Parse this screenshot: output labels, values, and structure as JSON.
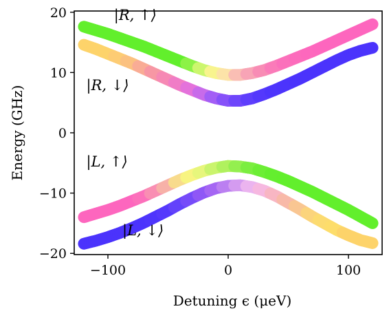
{
  "chart_data": {
    "type": "line",
    "title": "",
    "xlabel": "Detuning ϵ (μeV)",
    "ylabel": "Energy (GHz)",
    "xlim": [
      -128,
      128
    ],
    "ylim": [
      -20.2,
      20.2
    ],
    "xticks": [
      -100,
      0,
      100
    ],
    "xtick_labels": [
      "−100",
      "0",
      "100"
    ],
    "yticks": [
      -20,
      -10,
      0,
      10,
      20
    ],
    "ytick_labels": [
      "−20",
      "−10",
      "0",
      "10",
      "20"
    ],
    "grid": false,
    "x": [
      -120,
      -110,
      -100,
      -90,
      -80,
      -70,
      -60,
      -50,
      -40,
      -30,
      -20,
      -10,
      0,
      10,
      20,
      30,
      40,
      50,
      60,
      70,
      80,
      90,
      100,
      110,
      120
    ],
    "series": [
      {
        "label": "|R, ↑⟩",
        "values": [
          17.6,
          17.0,
          16.4,
          15.7,
          15.0,
          14.3,
          13.5,
          12.7,
          11.9,
          11.1,
          10.4,
          9.9,
          9.6,
          9.6,
          9.9,
          10.4,
          11.1,
          11.9,
          12.7,
          13.5,
          14.4,
          15.3,
          16.2,
          17.1,
          18.0
        ],
        "colors": [
          "#62ef2c",
          "#62ef2c",
          "#62ef2c",
          "#62ef2c",
          "#62ef2c",
          "#62ef2c",
          "#62ef2c",
          "#62ef2c",
          "#62ef2c",
          "#8cf247",
          "#ccf66e",
          "#f8f48e",
          "#fce3a8",
          "#fabeb4",
          "#f8a4b6",
          "#f88cb5",
          "#fa7bb9",
          "#fb70bb",
          "#fc6bbc",
          "#fd68bd",
          "#fd66be",
          "#fd66be",
          "#fd66be",
          "#fd66be",
          "#fd66be"
        ]
      },
      {
        "label": "|R, ↓⟩",
        "values": [
          14.6,
          13.9,
          13.1,
          12.3,
          11.5,
          10.6,
          9.7,
          8.8,
          7.9,
          7.1,
          6.3,
          5.7,
          5.3,
          5.3,
          5.7,
          6.4,
          7.2,
          8.1,
          9.0,
          10.0,
          11.0,
          12.0,
          12.9,
          13.6,
          14.1
        ],
        "colors": [
          "#fdd36a",
          "#fdd36a",
          "#fdd36a",
          "#fdcc74",
          "#fbc180",
          "#f9ac95",
          "#f797a4",
          "#f689b4",
          "#f07cc6",
          "#e472db",
          "#c86bea",
          "#a35ef5",
          "#8651f9",
          "#6e46fb",
          "#5e3efc",
          "#5438fc",
          "#4e35fc",
          "#4c34fc",
          "#4b33fc",
          "#4b33fc",
          "#4b33fc",
          "#4b33fc",
          "#4b33fc",
          "#4b33fc",
          "#4b33fc"
        ]
      },
      {
        "label": "|L, ↑⟩",
        "values": [
          -14.0,
          -13.4,
          -12.8,
          -12.1,
          -11.3,
          -10.5,
          -9.6,
          -8.7,
          -7.8,
          -7.0,
          -6.3,
          -5.8,
          -5.5,
          -5.6,
          -5.9,
          -6.5,
          -7.2,
          -8.0,
          -8.9,
          -9.8,
          -10.8,
          -11.8,
          -12.8,
          -13.9,
          -15.0
        ],
        "colors": [
          "#fd66be",
          "#fd66be",
          "#fd66be",
          "#fd66be",
          "#fd66be",
          "#fc70bb",
          "#f98eb3",
          "#f7b1a8",
          "#f8db8c",
          "#f8f481",
          "#e7f67c",
          "#caf46d",
          "#b0f15e",
          "#94ef4f",
          "#7bee40",
          "#6cee35",
          "#64ee2f",
          "#62ef2c",
          "#62ef2c",
          "#62ef2c",
          "#62ef2c",
          "#62ef2c",
          "#62ef2c",
          "#62ef2c",
          "#62ef2c"
        ]
      },
      {
        "label": "|L, ↓⟩",
        "values": [
          -18.4,
          -17.9,
          -17.3,
          -16.6,
          -15.8,
          -14.9,
          -13.9,
          -12.9,
          -11.8,
          -10.8,
          -9.9,
          -9.2,
          -8.8,
          -8.7,
          -9.0,
          -9.6,
          -10.5,
          -11.6,
          -12.7,
          -13.9,
          -15.0,
          -16.1,
          -17.0,
          -17.8,
          -18.3
        ],
        "colors": [
          "#4b33fc",
          "#4b33fc",
          "#4b33fc",
          "#4b33fc",
          "#4b33fc",
          "#4b33fc",
          "#4e35fc",
          "#5539fc",
          "#6342fb",
          "#764bf9",
          "#8f57f6",
          "#a566f3",
          "#bb7ff1",
          "#d49bf0",
          "#ebb4ef",
          "#f6b8e0",
          "#f8b6c3",
          "#f8b9a8",
          "#f9c692",
          "#fbd47c",
          "#fcdb70",
          "#fddd6b",
          "#fdd36a",
          "#fdd36a",
          "#fdd36a"
        ]
      }
    ],
    "annotations": [
      {
        "text": "|R, ↑⟩",
        "x": -95,
        "y": 18.7
      },
      {
        "text": "|R, ↓⟩",
        "x": -118,
        "y": 7.1
      },
      {
        "text": "|L, ↑⟩",
        "x": -118,
        "y": -5.6
      },
      {
        "text": "|L, ↓⟩",
        "x": -88,
        "y": -17.0
      }
    ]
  }
}
